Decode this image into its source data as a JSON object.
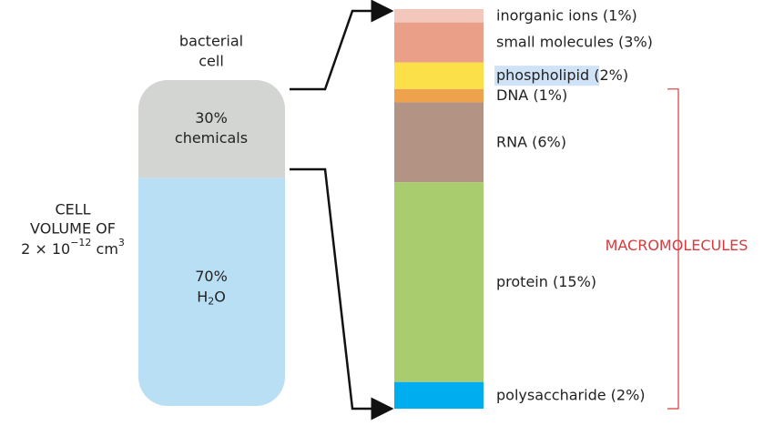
{
  "cell": {
    "caption": [
      "bacterial",
      "cell"
    ],
    "parts": [
      {
        "label": "30%",
        "text": "chemicals",
        "value": 30,
        "color": "#d3d5d2"
      },
      {
        "label": "70%",
        "formula": [
          "H",
          "2",
          "O"
        ],
        "value": 70,
        "color": "#b9dff5"
      }
    ],
    "volume": {
      "lines": [
        "CELL",
        "VOLUME OF"
      ],
      "expr": [
        "2 × 10",
        "−12",
        " cm",
        "3"
      ]
    }
  },
  "composition": {
    "segments": [
      {
        "name": "inorganic ions",
        "pct": "(1%)",
        "value": 1,
        "color": "#f3c7bc"
      },
      {
        "name": "small molecules",
        "pct": "(3%)",
        "value": 3,
        "color": "#e99f88"
      },
      {
        "name": "phospholipid",
        "pct": "(2%)",
        "value": 2,
        "color": "#fce04a",
        "highlight": true
      },
      {
        "name": "DNA",
        "pct": "(1%)",
        "value": 1,
        "color": "#efa24c"
      },
      {
        "name": "RNA",
        "pct": "(6%)",
        "value": 6,
        "color": "#b39484"
      },
      {
        "name": "protein",
        "pct": "(15%)",
        "value": 15,
        "color": "#a9cc6f"
      },
      {
        "name": "polysaccharide",
        "pct": "(2%)",
        "value": 2,
        "color": "#00aeef"
      }
    ],
    "group": {
      "label": "MACROMOLECULES",
      "from": 3,
      "to": 6,
      "color": "#d9393b"
    }
  }
}
